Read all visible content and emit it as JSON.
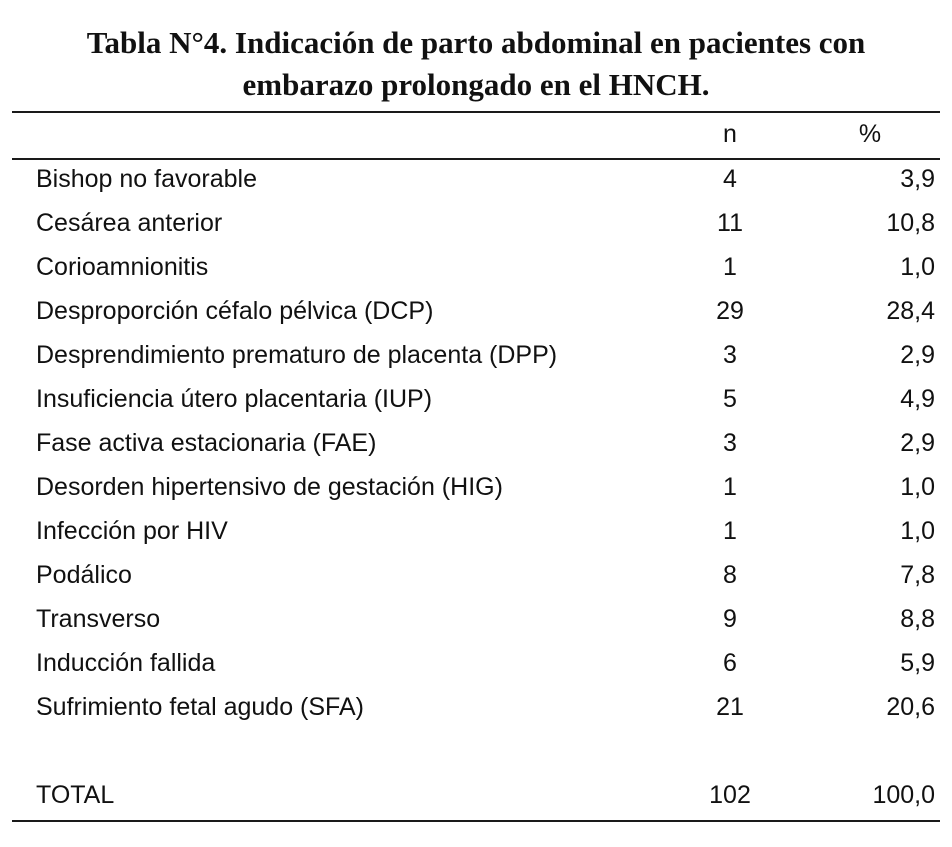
{
  "title": {
    "line1": "Tabla N°4. Indicación de parto abdominal en pacientes con",
    "line2": "embarazo prolongado en el HNCH."
  },
  "table": {
    "headers": {
      "label": "",
      "n": "n",
      "pct": "%"
    },
    "rows": [
      {
        "label": "Bishop no favorable",
        "n": "4",
        "pct": "3,9"
      },
      {
        "label": "Cesárea anterior",
        "n": "11",
        "pct": "10,8"
      },
      {
        "label": "Corioamnionitis",
        "n": "1",
        "pct": "1,0"
      },
      {
        "label": "Desproporción céfalo pélvica (DCP)",
        "n": "29",
        "pct": "28,4"
      },
      {
        "label": "Desprendimiento prematuro de placenta (DPP)",
        "n": "3",
        "pct": "2,9"
      },
      {
        "label": "Insuficiencia útero placentaria (IUP)",
        "n": "5",
        "pct": "4,9"
      },
      {
        "label": "Fase activa estacionaria (FAE)",
        "n": "3",
        "pct": "2,9"
      },
      {
        "label": "Desorden hipertensivo de gestación (HIG)",
        "n": "1",
        "pct": "1,0"
      },
      {
        "label": "Infección por HIV",
        "n": "1",
        "pct": "1,0"
      },
      {
        "label": "Podálico",
        "n": "8",
        "pct": "7,8"
      },
      {
        "label": "Transverso",
        "n": "9",
        "pct": "8,8"
      },
      {
        "label": "Inducción fallida",
        "n": "6",
        "pct": "5,9"
      },
      {
        "label": "Sufrimiento fetal agudo (SFA)",
        "n": "21",
        "pct": "20,6"
      }
    ],
    "total": {
      "label": "TOTAL",
      "n": "102",
      "pct": "100,0"
    }
  }
}
